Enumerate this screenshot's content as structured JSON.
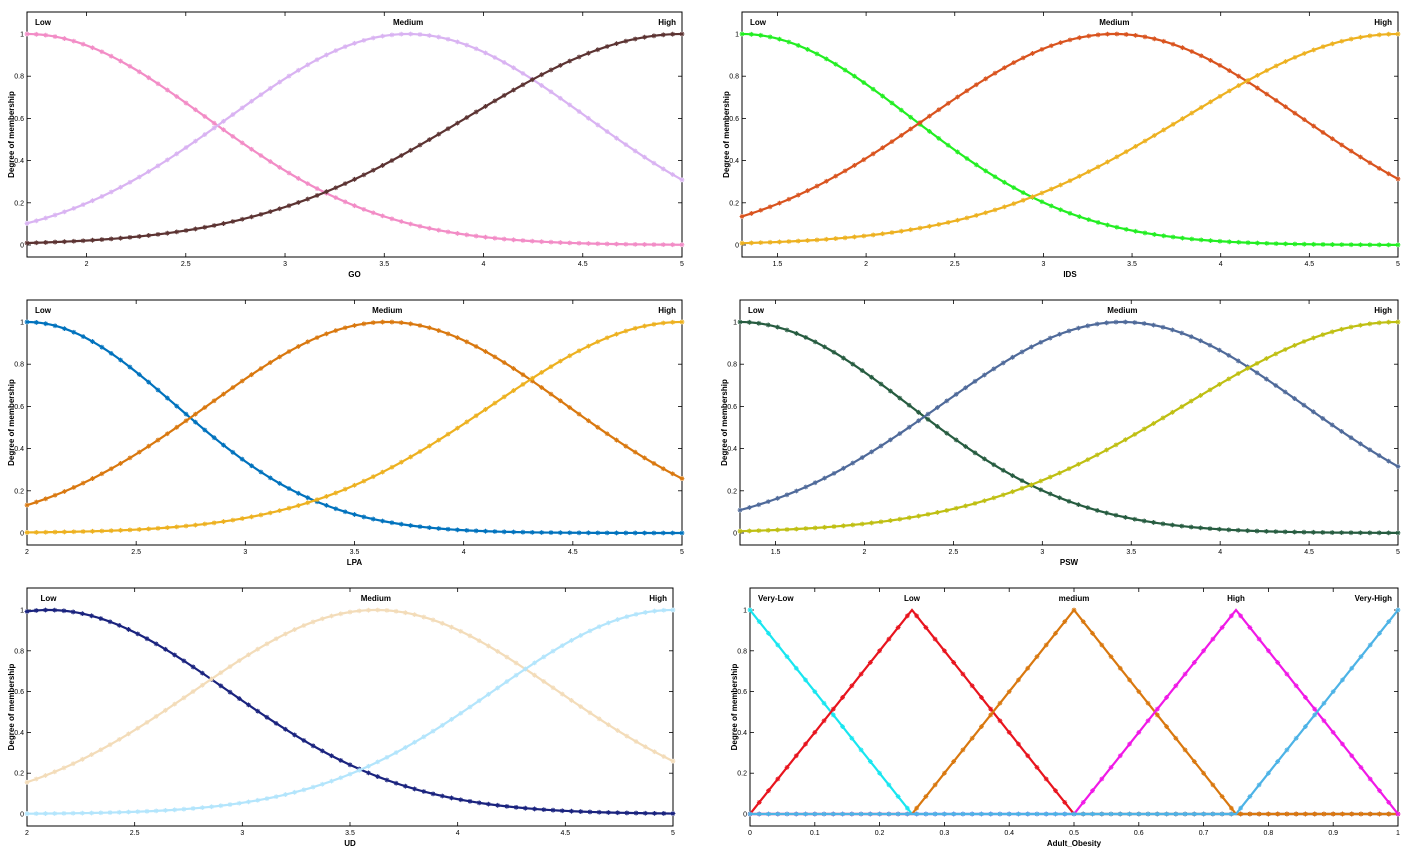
{
  "chart_data": [
    {
      "type": "line",
      "xlabel": "GO",
      "ylabel": "Degree of membership",
      "xlim": [
        1.7,
        5
      ],
      "ylim": [
        0,
        1
      ],
      "xticks": [
        2,
        2.5,
        3,
        3.5,
        4,
        4.5,
        5
      ],
      "xtick_labels": [
        "2",
        "2.5",
        "3",
        "3.5",
        "4",
        "4.5",
        "5"
      ],
      "yticks": [
        0,
        0.2,
        0.4,
        0.6,
        0.8,
        1
      ],
      "ytick_labels": [
        "0",
        "0.2",
        "0.4",
        "0.6",
        "0.8",
        "1"
      ],
      "series": [
        {
          "name": "Low",
          "mf": "gauss",
          "mean": 1.7,
          "sigma": 0.9,
          "color": "#f28cc6"
        },
        {
          "name": "Medium",
          "mf": "gauss",
          "mean": 3.62,
          "sigma": 0.9,
          "color": "#d9b3f2"
        },
        {
          "name": "High",
          "mf": "gauss",
          "mean": 5,
          "sigma": 1.08,
          "color": "#5c3332"
        }
      ]
    },
    {
      "type": "line",
      "xlabel": "IDS",
      "ylabel": "Degree of membership",
      "xlim": [
        1.3,
        5
      ],
      "ylim": [
        0,
        1
      ],
      "xticks": [
        1.5,
        2,
        2.5,
        3,
        3.5,
        4,
        4.5,
        5
      ],
      "xtick_labels": [
        "1.5",
        "2",
        "2.5",
        "3",
        "3.5",
        "4",
        "4.5",
        "5"
      ],
      "yticks": [
        0,
        0.2,
        0.4,
        0.6,
        0.8,
        1
      ],
      "ytick_labels": [
        "0",
        "0.2",
        "0.4",
        "0.6",
        "0.8",
        "1"
      ],
      "series": [
        {
          "name": "Low",
          "mf": "gauss",
          "mean": 1.3,
          "sigma": 0.95,
          "color": "#22ee22"
        },
        {
          "name": "Medium",
          "mf": "gauss",
          "mean": 3.4,
          "sigma": 1.05,
          "color": "#d9531e"
        },
        {
          "name": "High",
          "mf": "gauss",
          "mean": 5,
          "sigma": 1.2,
          "color": "#edb120"
        }
      ]
    },
    {
      "type": "line",
      "xlabel": "LPA",
      "ylabel": "Degree of membership",
      "xlim": [
        2,
        5
      ],
      "ylim": [
        0,
        1
      ],
      "xticks": [
        2,
        2.5,
        3,
        3.5,
        4,
        4.5,
        5
      ],
      "xtick_labels": [
        "2",
        "2.5",
        "3",
        "3.5",
        "4",
        "4.5",
        "5"
      ],
      "yticks": [
        0,
        0.2,
        0.4,
        0.6,
        0.8,
        1
      ],
      "ytick_labels": [
        "0",
        "0.2",
        "0.4",
        "0.6",
        "0.8",
        "1"
      ],
      "series": [
        {
          "name": "Low",
          "mf": "gauss",
          "mean": 2,
          "sigma": 0.68,
          "color": "#0072bd"
        },
        {
          "name": "Medium",
          "mf": "gauss",
          "mean": 3.65,
          "sigma": 0.82,
          "color": "#d9780f"
        },
        {
          "name": "High",
          "mf": "gauss",
          "mean": 5,
          "sigma": 0.87,
          "color": "#edb120"
        }
      ]
    },
    {
      "type": "line",
      "xlabel": "PSW",
      "ylabel": "Degree of membership",
      "xlim": [
        1.3,
        5
      ],
      "ylim": [
        0,
        1
      ],
      "xticks": [
        1.5,
        2,
        2.5,
        3,
        3.5,
        4,
        4.5,
        5
      ],
      "xtick_labels": [
        "1.5",
        "2",
        "2.5",
        "3",
        "3.5",
        "4",
        "4.5",
        "5"
      ],
      "yticks": [
        0,
        0.2,
        0.4,
        0.6,
        0.8,
        1
      ],
      "ytick_labels": [
        "0",
        "0.2",
        "0.4",
        "0.6",
        "0.8",
        "1"
      ],
      "series": [
        {
          "name": "Low",
          "mf": "gauss",
          "mean": 1.3,
          "sigma": 0.95,
          "color": "#265c40"
        },
        {
          "name": "Medium",
          "mf": "gauss",
          "mean": 3.45,
          "sigma": 1.02,
          "color": "#4f6a9a"
        },
        {
          "name": "High",
          "mf": "gauss",
          "mean": 5,
          "sigma": 1.2,
          "color": "#bfbf12"
        }
      ]
    },
    {
      "type": "line",
      "xlabel": "UD",
      "ylabel": "Degree of membership",
      "xlim": [
        2,
        5
      ],
      "ylim": [
        0,
        1
      ],
      "xticks": [
        2,
        2.5,
        3,
        3.5,
        4,
        4.5,
        5
      ],
      "xtick_labels": [
        "2",
        "2.5",
        "3",
        "3.5",
        "4",
        "4.5",
        "5"
      ],
      "yticks": [
        0,
        0.2,
        0.4,
        0.6,
        0.8,
        1
      ],
      "ytick_labels": [
        "0",
        "0.2",
        "0.4",
        "0.6",
        "0.8",
        "1"
      ],
      "series": [
        {
          "name": "Low",
          "mf": "gauss",
          "mean": 2.1,
          "sigma": 0.83,
          "color": "#1a237e"
        },
        {
          "name": "Medium",
          "mf": "gauss",
          "mean": 3.62,
          "sigma": 0.84,
          "color": "#f3dcb9"
        },
        {
          "name": "High",
          "mf": "gauss",
          "mean": 5,
          "sigma": 0.83,
          "color": "#b3e5fc"
        }
      ]
    },
    {
      "type": "line",
      "xlabel": "Adult_Obesity",
      "ylabel": "Degree of membership",
      "xlim": [
        0,
        1
      ],
      "ylim": [
        0,
        1
      ],
      "xticks": [
        0,
        0.1,
        0.2,
        0.3,
        0.4,
        0.5,
        0.6,
        0.7,
        0.8,
        0.9,
        1
      ],
      "xtick_labels": [
        "0",
        "0.1",
        "0.2",
        "0.3",
        "0.4",
        "0.5",
        "0.6",
        "0.7",
        "0.8",
        "0.9",
        "1"
      ],
      "yticks": [
        0,
        0.2,
        0.4,
        0.6,
        0.8,
        1
      ],
      "ytick_labels": [
        "0",
        "0.2",
        "0.4",
        "0.6",
        "0.8",
        "1"
      ],
      "series": [
        {
          "name": "Very-Low",
          "mf": "tri",
          "params": [
            -0.25,
            0,
            0.25
          ],
          "color": "#19e6f0"
        },
        {
          "name": "Low",
          "mf": "tri",
          "params": [
            0,
            0.25,
            0.5
          ],
          "color": "#e8141e"
        },
        {
          "name": "medium",
          "mf": "tri",
          "params": [
            0.25,
            0.5,
            0.75
          ],
          "color": "#d9780f"
        },
        {
          "name": "High",
          "mf": "tri",
          "params": [
            0.5,
            0.75,
            1
          ],
          "color": "#f019e6"
        },
        {
          "name": "Very-High",
          "mf": "tri",
          "params": [
            0.75,
            1,
            1.25
          ],
          "color": "#4db3e6"
        }
      ]
    }
  ]
}
